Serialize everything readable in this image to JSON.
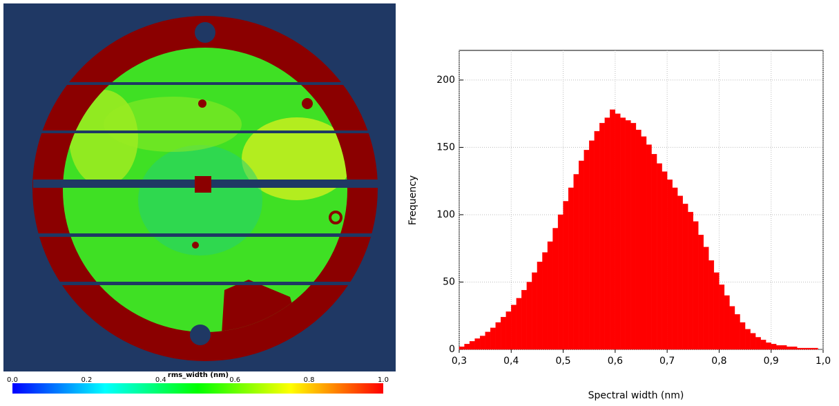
{
  "chart_data": [
    {
      "type": "colorbar",
      "title": "rms_width (nm)",
      "clim": [
        0,
        1
      ],
      "colors": [
        "#0000ff",
        "#00ffff",
        "#00ff00",
        "#ffff00",
        "#ff0000"
      ],
      "ticks": [
        {
          "value": 0,
          "label": "0.0"
        },
        {
          "value": 0.2,
          "label": "0.2"
        },
        {
          "value": 0.4,
          "label": "0.4"
        },
        {
          "value": 0.6,
          "label": "0.6"
        },
        {
          "value": 0.8,
          "label": "0.8"
        },
        {
          "value": 1,
          "label": "1.0"
        }
      ]
    },
    {
      "type": "histogram",
      "x_label": "Spectral width (nm)",
      "y_label": "Frequency",
      "color": "#ff0000",
      "grid": true,
      "bins": [
        0.3,
        0.31,
        0.32,
        0.33,
        0.34,
        0.35,
        0.36,
        0.37,
        0.38,
        0.39,
        0.4,
        0.41,
        0.42,
        0.43,
        0.44,
        0.45,
        0.46,
        0.47,
        0.48,
        0.49,
        0.5,
        0.51,
        0.52,
        0.53,
        0.54,
        0.55,
        0.56,
        0.57,
        0.58,
        0.59,
        0.6,
        0.61,
        0.62,
        0.63,
        0.64,
        0.65,
        0.66,
        0.67,
        0.68,
        0.69,
        0.7,
        0.71,
        0.72,
        0.73,
        0.74,
        0.75,
        0.76,
        0.77,
        0.78,
        0.79,
        0.8,
        0.81,
        0.82,
        0.83,
        0.84,
        0.85,
        0.86,
        0.87,
        0.88,
        0.89,
        0.9,
        0.91,
        0.92,
        0.93,
        0.94,
        0.95,
        0.96,
        0.97,
        0.98,
        0.99,
        1.0
      ],
      "values": [
        2,
        4,
        6,
        8,
        10,
        13,
        16,
        20,
        24,
        28,
        33,
        38,
        44,
        50,
        57,
        65,
        72,
        80,
        90,
        100,
        110,
        120,
        130,
        140,
        148,
        155,
        162,
        168,
        172,
        178,
        175,
        172,
        170,
        168,
        163,
        158,
        152,
        145,
        138,
        132,
        126,
        120,
        114,
        108,
        102,
        95,
        85,
        76,
        66,
        57,
        48,
        40,
        32,
        26,
        20,
        15,
        12,
        9,
        7,
        5,
        4,
        3,
        3,
        2,
        2,
        1,
        1,
        1,
        1,
        0
      ],
      "xlim": [
        0.3,
        1.0
      ],
      "xticks": [
        {
          "value": 0.3,
          "label": "0,3"
        },
        {
          "value": 0.4,
          "label": "0,4"
        },
        {
          "value": 0.5,
          "label": "0,5"
        },
        {
          "value": 0.6,
          "label": "0,6"
        },
        {
          "value": 0.7,
          "label": "0,7"
        },
        {
          "value": 0.8,
          "label": "0,8"
        },
        {
          "value": 0.9,
          "label": "0,9"
        },
        {
          "value": 1.0,
          "label": "1,0"
        }
      ],
      "ylim": [
        0,
        222
      ],
      "yticks": [
        0,
        50,
        100,
        150,
        200
      ]
    }
  ]
}
